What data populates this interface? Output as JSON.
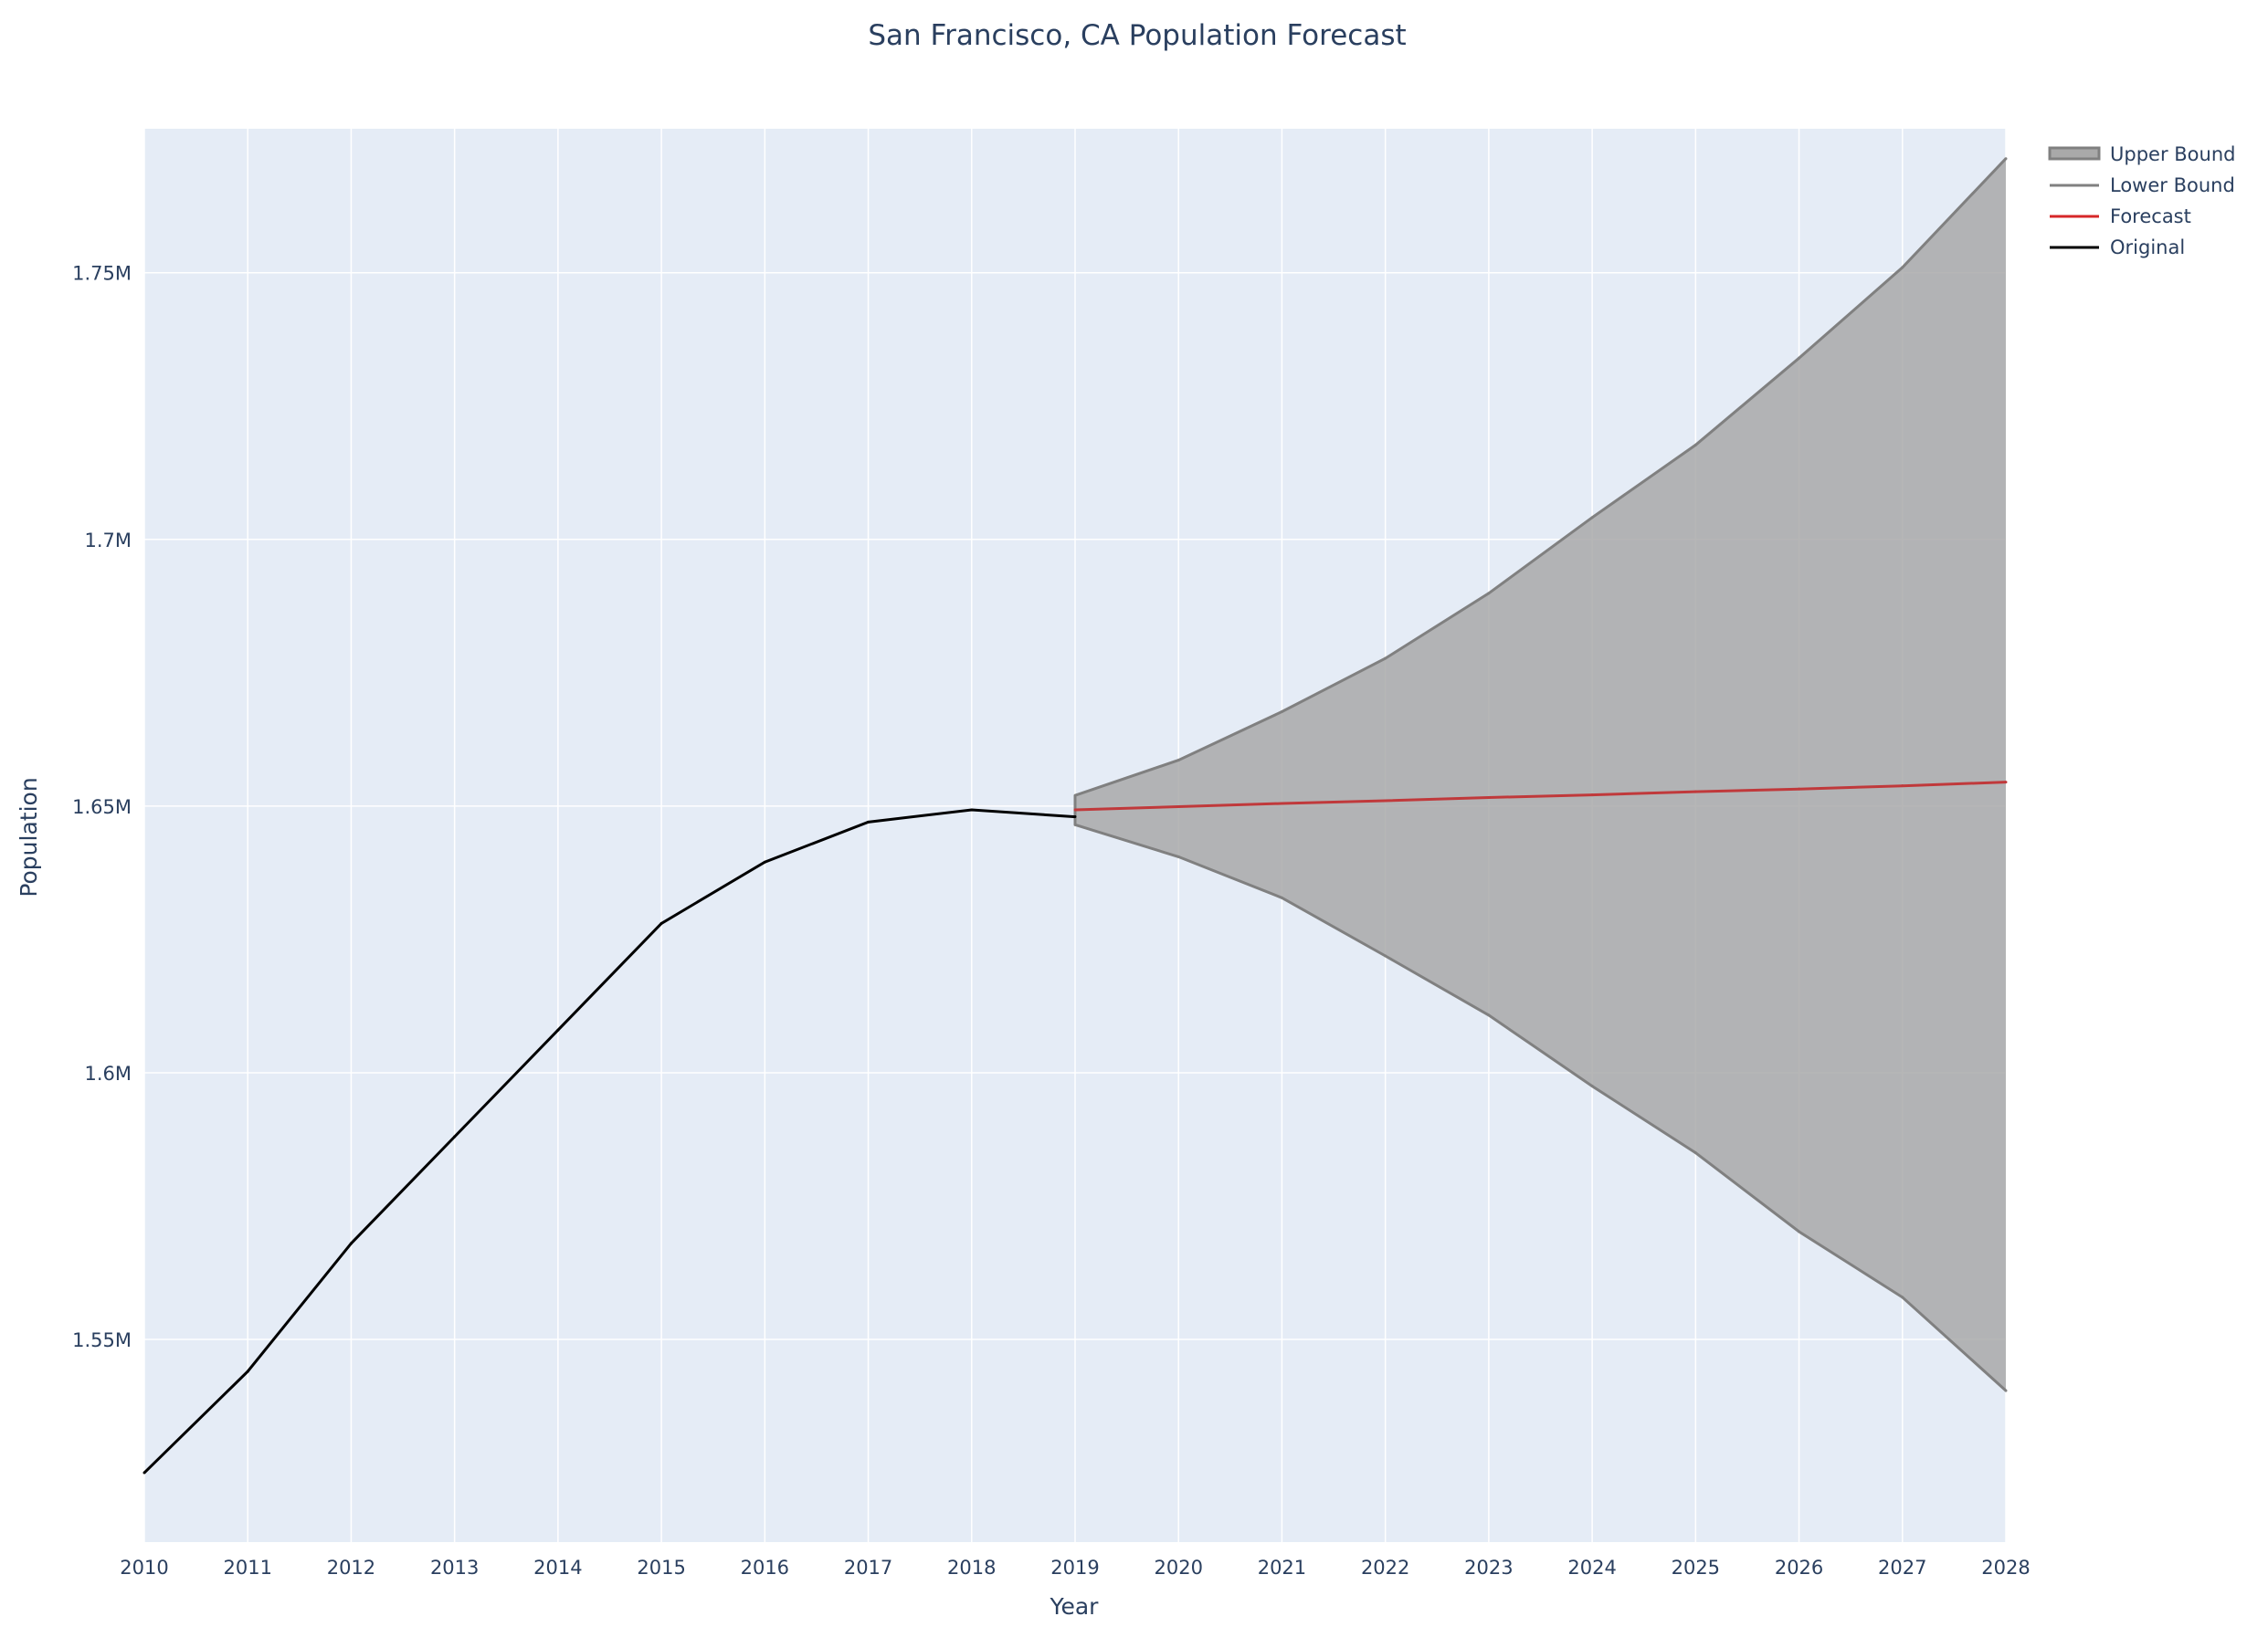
{
  "chart_data": {
    "type": "line",
    "title": "San Francisco, CA Population Forecast",
    "xlabel": "Year",
    "ylabel": "Population",
    "xlim": [
      2010,
      2028
    ],
    "ylim": [
      1512000,
      1777000
    ],
    "grid": true,
    "legend_position": "top-right, outside plot area",
    "x_ticks": [
      2010,
      2011,
      2012,
      2013,
      2014,
      2015,
      2016,
      2017,
      2018,
      2019,
      2020,
      2021,
      2022,
      2023,
      2024,
      2025,
      2026,
      2027,
      2028
    ],
    "x_tick_labels": [
      "2010",
      "2011",
      "2012",
      "2013",
      "2014",
      "2015",
      "2016",
      "2017",
      "2018",
      "2019",
      "2020",
      "2021",
      "2022",
      "2023",
      "2024",
      "2025",
      "2026",
      "2027",
      "2028"
    ],
    "y_ticks": [
      1550000,
      1600000,
      1650000,
      1700000,
      1750000
    ],
    "y_tick_labels": [
      "1.55M",
      "1.6M",
      "1.65M",
      "1.7M",
      "1.75M"
    ],
    "colors": {
      "plot_background": "#e5ecf6",
      "grid": "#ffffff",
      "band_fill": "#a9a9a9",
      "band_line": "#808080",
      "forecast": "#d62728",
      "forecast_in_band": "#c0393b",
      "original": "#000000",
      "text": "#2a3f5f"
    },
    "legend": [
      {
        "name": "Upper Bound",
        "series": "upper"
      },
      {
        "name": "Lower Bound",
        "series": "lower"
      },
      {
        "name": "Forecast",
        "series": "forecast"
      },
      {
        "name": "Original",
        "series": "original"
      }
    ],
    "series": [
      {
        "name": "Original",
        "key": "original",
        "x": [
          2010,
          2011,
          2012,
          2013,
          2014,
          2015,
          2016,
          2017,
          2018,
          2019
        ],
        "values": [
          1525000,
          1544000,
          1568000,
          1588000,
          1608000,
          1628000,
          1639500,
          1647000,
          1649300,
          1648000
        ]
      },
      {
        "name": "Forecast",
        "key": "forecast",
        "x": [
          2019,
          2020,
          2021,
          2022,
          2023,
          2024,
          2025,
          2026,
          2027,
          2028
        ],
        "values": [
          1649300,
          1649900,
          1650500,
          1651000,
          1651600,
          1652100,
          1652700,
          1653200,
          1653800,
          1654500
        ]
      },
      {
        "name": "Upper Bound",
        "key": "upper",
        "x": [
          2019,
          2020,
          2021,
          2022,
          2023,
          2024,
          2025,
          2026,
          2027,
          2028
        ],
        "values": [
          1652000,
          1658600,
          1667700,
          1677700,
          1689900,
          1704100,
          1717700,
          1734000,
          1751000,
          1771400
        ]
      },
      {
        "name": "Lower Bound",
        "key": "lower",
        "x": [
          2019,
          2020,
          2021,
          2022,
          2023,
          2024,
          2025,
          2026,
          2027,
          2028
        ],
        "values": [
          1646500,
          1640500,
          1632800,
          1621900,
          1610800,
          1597500,
          1585000,
          1570200,
          1557900,
          1540400
        ]
      }
    ]
  }
}
